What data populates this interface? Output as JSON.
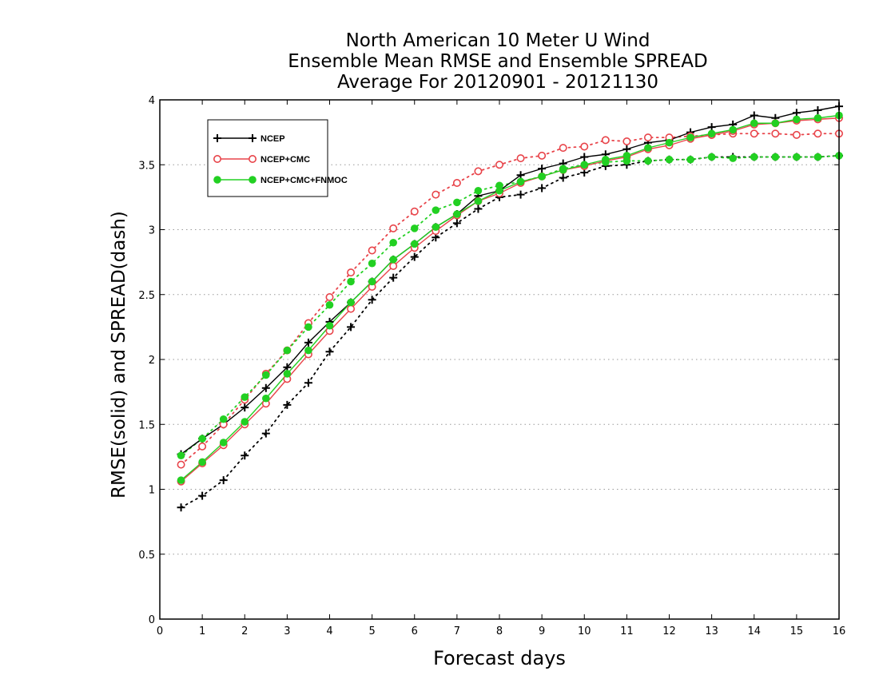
{
  "chart_data": {
    "type": "line",
    "title_lines": [
      "North American 10 Meter U Wind",
      "Ensemble Mean RMSE and Ensemble SPREAD",
      "Average For 20120901 - 20121130"
    ],
    "xlabel": "Forecast days",
    "ylabel": "RMSE(solid) and SPREAD(dash)",
    "xlim": [
      0,
      16
    ],
    "ylim": [
      0,
      4
    ],
    "xticks": [
      "0",
      "1",
      "2",
      "3",
      "4",
      "5",
      "6",
      "7",
      "8",
      "9",
      "10",
      "11",
      "12",
      "13",
      "14",
      "15",
      "16"
    ],
    "yticks": [
      "0",
      "0.5",
      "1",
      "1.5",
      "2",
      "2.5",
      "3",
      "3.5",
      "4"
    ],
    "ytick_values": [
      0,
      0.5,
      1,
      1.5,
      2,
      2.5,
      3,
      3.5,
      4
    ],
    "grid": "horizontal dotted",
    "legend_placement": "top-left",
    "x": [
      0.5,
      1,
      1.5,
      2,
      2.5,
      3,
      3.5,
      4,
      4.5,
      5,
      5.5,
      6,
      6.5,
      7,
      7.5,
      8,
      8.5,
      9,
      9.5,
      10,
      10.5,
      11,
      11.5,
      12,
      12.5,
      13,
      13.5,
      14,
      14.5,
      15,
      15.5,
      16
    ],
    "series": [
      {
        "name": "NCEP",
        "color": "#000000",
        "marker": "plus",
        "rmse": [
          1.27,
          1.39,
          1.5,
          1.63,
          1.78,
          1.94,
          2.13,
          2.29,
          2.44,
          2.6,
          2.77,
          2.89,
          3.02,
          3.12,
          3.26,
          3.3,
          3.42,
          3.47,
          3.51,
          3.56,
          3.58,
          3.62,
          3.67,
          3.69,
          3.75,
          3.79,
          3.81,
          3.88,
          3.86,
          3.9,
          3.92,
          3.95
        ],
        "spread": [
          0.86,
          0.95,
          1.07,
          1.26,
          1.43,
          1.65,
          1.82,
          2.06,
          2.25,
          2.46,
          2.63,
          2.79,
          2.94,
          3.05,
          3.16,
          3.25,
          3.27,
          3.32,
          3.4,
          3.44,
          3.49,
          3.5,
          3.53,
          3.54,
          3.54,
          3.56,
          3.56,
          3.56,
          3.56,
          3.56,
          3.56,
          3.57
        ]
      },
      {
        "name": "NCEP+CMC",
        "color": "#e8444a",
        "marker": "circle-open",
        "rmse": [
          1.06,
          1.2,
          1.34,
          1.5,
          1.66,
          1.85,
          2.04,
          2.22,
          2.39,
          2.56,
          2.72,
          2.86,
          2.99,
          3.11,
          3.22,
          3.28,
          3.36,
          3.41,
          3.46,
          3.49,
          3.53,
          3.56,
          3.62,
          3.65,
          3.7,
          3.73,
          3.76,
          3.81,
          3.82,
          3.84,
          3.85,
          3.86
        ],
        "spread": [
          1.19,
          1.33,
          1.5,
          1.69,
          1.89,
          2.07,
          2.28,
          2.48,
          2.67,
          2.84,
          3.01,
          3.14,
          3.27,
          3.36,
          3.45,
          3.5,
          3.55,
          3.57,
          3.63,
          3.64,
          3.69,
          3.68,
          3.71,
          3.71,
          3.72,
          3.73,
          3.74,
          3.74,
          3.74,
          3.73,
          3.74,
          3.74
        ]
      },
      {
        "name": "NCEP+CMC+FNMOC",
        "color": "#22d022",
        "marker": "circle-filled",
        "rmse": [
          1.07,
          1.21,
          1.36,
          1.52,
          1.7,
          1.89,
          2.07,
          2.26,
          2.44,
          2.6,
          2.77,
          2.89,
          3.02,
          3.12,
          3.22,
          3.3,
          3.37,
          3.41,
          3.46,
          3.5,
          3.54,
          3.57,
          3.63,
          3.67,
          3.71,
          3.74,
          3.77,
          3.82,
          3.82,
          3.85,
          3.86,
          3.88
        ],
        "spread": [
          1.26,
          1.39,
          1.54,
          1.71,
          1.88,
          2.07,
          2.25,
          2.42,
          2.6,
          2.74,
          2.9,
          3.01,
          3.15,
          3.21,
          3.3,
          3.34,
          3.37,
          3.41,
          3.47,
          3.5,
          3.52,
          3.53,
          3.53,
          3.54,
          3.54,
          3.56,
          3.55,
          3.56,
          3.56,
          3.56,
          3.56,
          3.57
        ]
      }
    ]
  }
}
